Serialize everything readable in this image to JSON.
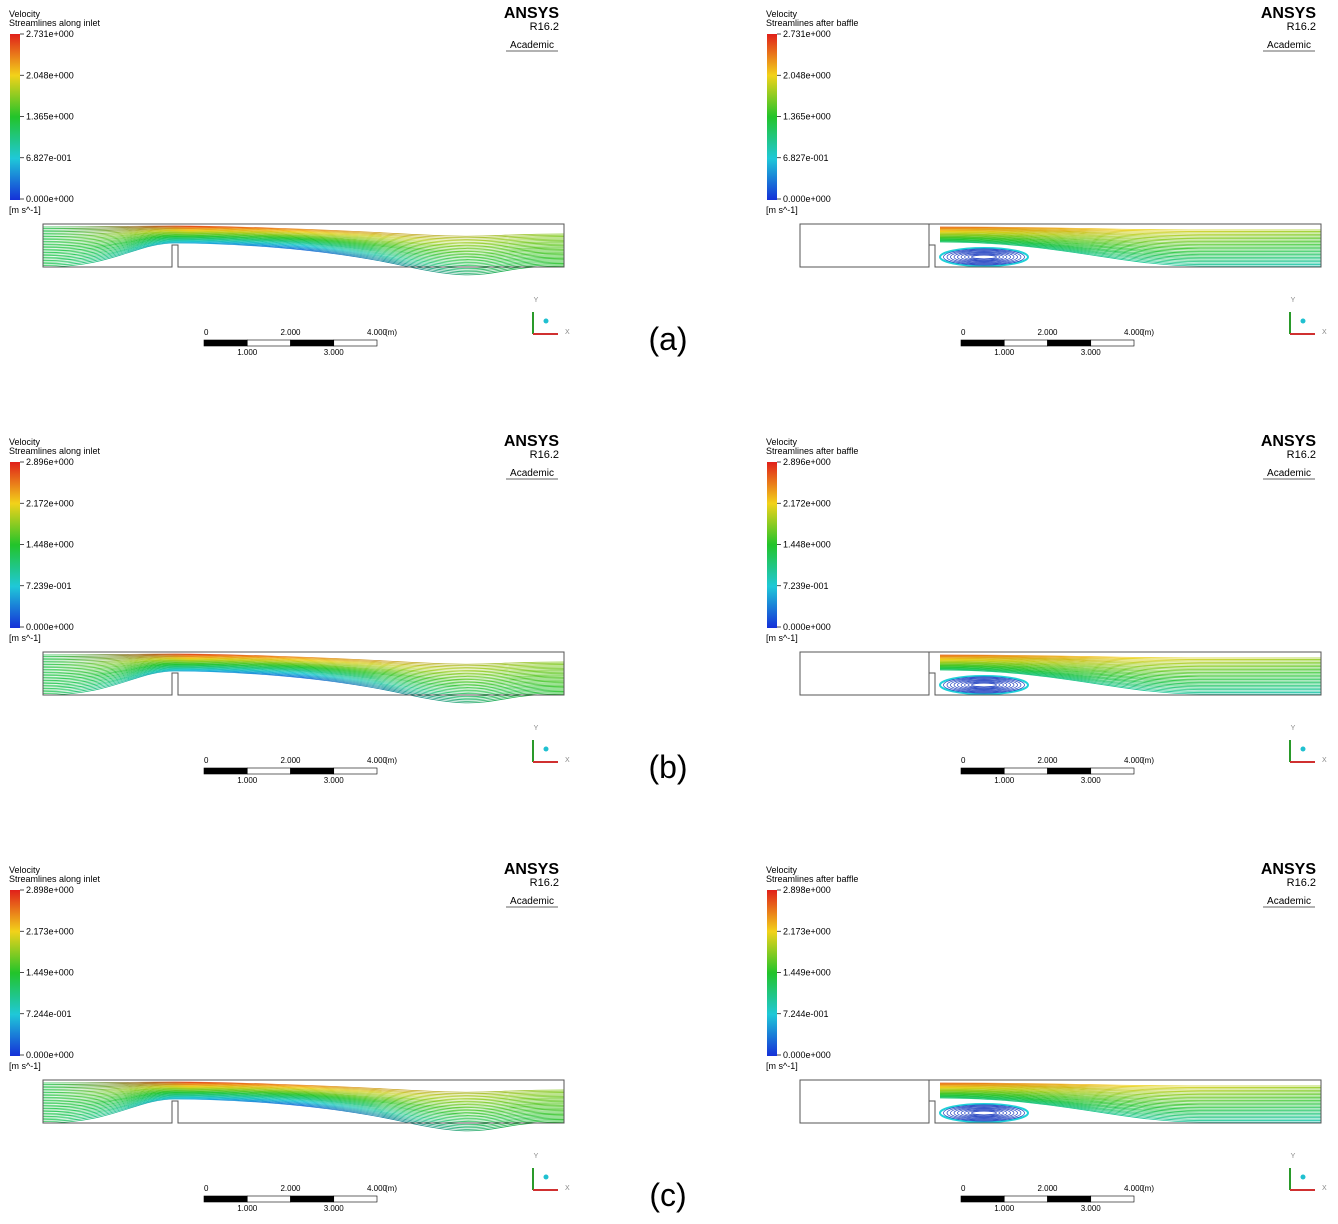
{
  "rows": [
    {
      "label": "(a)",
      "panels": [
        {
          "quantity": "Velocity",
          "description": "Streamlines along inlet",
          "legend": [
            "2.731e+000",
            "2.048e+000",
            "1.365e+000",
            "6.827e-001",
            "0.000e+000"
          ],
          "unit": "[m s^-1]",
          "brand": "ANSYS",
          "version": "R16.2",
          "license": "Academic",
          "scale_top": [
            "0",
            "2.000",
            "4.000",
            "(m)"
          ],
          "scale_bottom": [
            "1.000",
            "3.000"
          ],
          "axes": [
            "Y",
            "X"
          ]
        },
        {
          "quantity": "Velocity",
          "description": "Streamlines after baffle",
          "legend": [
            "2.731e+000",
            "2.048e+000",
            "1.365e+000",
            "6.827e-001",
            "0.000e+000"
          ],
          "unit": "[m s^-1]",
          "brand": "ANSYS",
          "version": "R16.2",
          "license": "Academic",
          "scale_top": [
            "0",
            "2.000",
            "4.000",
            "(m)"
          ],
          "scale_bottom": [
            "1.000",
            "3.000"
          ],
          "axes": [
            "Y",
            "X"
          ]
        }
      ]
    },
    {
      "label": "(b)",
      "panels": [
        {
          "quantity": "Velocity",
          "description": "Streamlines along inlet",
          "legend": [
            "2.896e+000",
            "2.172e+000",
            "1.448e+000",
            "7.239e-001",
            "0.000e+000"
          ],
          "unit": "[m s^-1]",
          "brand": "ANSYS",
          "version": "R16.2",
          "license": "Academic",
          "scale_top": [
            "0",
            "2.000",
            "4.000",
            "(m)"
          ],
          "scale_bottom": [
            "1.000",
            "3.000"
          ],
          "axes": [
            "Y",
            "X"
          ]
        },
        {
          "quantity": "Velocity",
          "description": "Streamlines after baffle",
          "legend": [
            "2.896e+000",
            "2.172e+000",
            "1.448e+000",
            "7.239e-001",
            "0.000e+000"
          ],
          "unit": "[m s^-1]",
          "brand": "ANSYS",
          "version": "R16.2",
          "license": "Academic",
          "scale_top": [
            "0",
            "2.000",
            "4.000",
            "(m)"
          ],
          "scale_bottom": [
            "1.000",
            "3.000"
          ],
          "axes": [
            "Y",
            "X"
          ]
        }
      ]
    },
    {
      "label": "(c)",
      "panels": [
        {
          "quantity": "Velocity",
          "description": "Streamlines along inlet",
          "legend": [
            "2.898e+000",
            "2.173e+000",
            "1.449e+000",
            "7.244e-001",
            "0.000e+000"
          ],
          "unit": "[m s^-1]",
          "brand": "ANSYS",
          "version": "R16.2",
          "license": "Academic",
          "scale_top": [
            "0",
            "2.000",
            "4.000",
            "(m)"
          ],
          "scale_bottom": [
            "1.000",
            "3.000"
          ],
          "axes": [
            "Y",
            "X"
          ]
        },
        {
          "quantity": "Velocity",
          "description": "Streamlines after baffle",
          "legend": [
            "2.898e+000",
            "2.173e+000",
            "1.449e+000",
            "7.244e-001",
            "0.000e+000"
          ],
          "unit": "[m s^-1]",
          "brand": "ANSYS",
          "version": "R16.2",
          "license": "Academic",
          "scale_top": [
            "0",
            "2.000",
            "4.000",
            "(m)"
          ],
          "scale_bottom": [
            "1.000",
            "3.000"
          ],
          "axes": [
            "Y",
            "X"
          ]
        }
      ]
    }
  ]
}
